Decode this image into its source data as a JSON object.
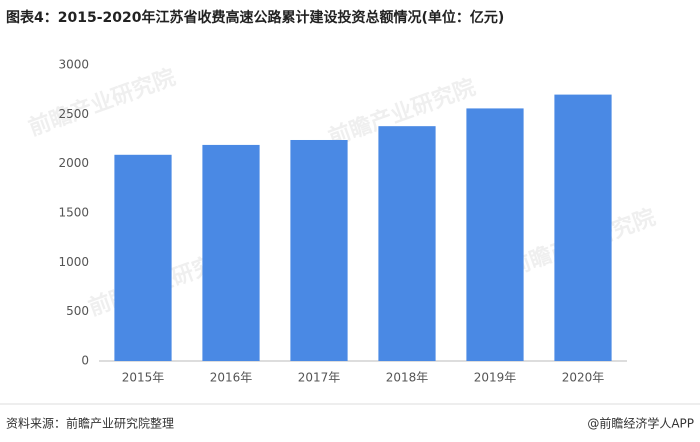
{
  "chart_data": {
    "type": "bar",
    "title": "图表4：2015-2020年江苏省收费高速公路累计建设投资总额情况(单位：亿元)",
    "categories": [
      "2015年",
      "2016年",
      "2017年",
      "2018年",
      "2019年",
      "2020年"
    ],
    "values": [
      2090,
      2190,
      2240,
      2380,
      2560,
      2700
    ],
    "color": "#4a89e4",
    "ylim": [
      0,
      3000
    ],
    "yticks": [
      0,
      500,
      1000,
      1500,
      2000,
      2500,
      3000
    ],
    "grid": false,
    "source": "资料来源：前瞻产业研究院整理",
    "credit": "@前瞻经济学人APP",
    "watermark": "前瞻产业研究院"
  }
}
